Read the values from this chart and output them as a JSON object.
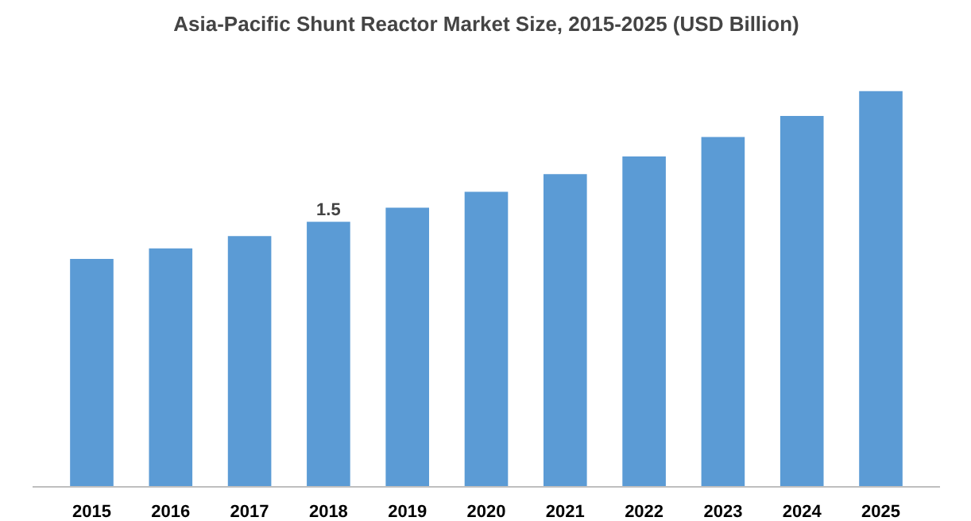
{
  "chart_data": {
    "type": "bar",
    "title": "Asia-Pacific Shunt Reactor Market Size, 2015-2025 (USD Billion)",
    "categories": [
      "2015",
      "2016",
      "2017",
      "2018",
      "2019",
      "2020",
      "2021",
      "2022",
      "2023",
      "2024",
      "2025"
    ],
    "values": [
      1.29,
      1.35,
      1.42,
      1.5,
      1.58,
      1.67,
      1.77,
      1.87,
      1.98,
      2.1,
      2.24
    ],
    "value_labels": [
      null,
      null,
      null,
      "1.5",
      null,
      null,
      null,
      null,
      null,
      null,
      null
    ],
    "color": "#5b9bd5"
  }
}
